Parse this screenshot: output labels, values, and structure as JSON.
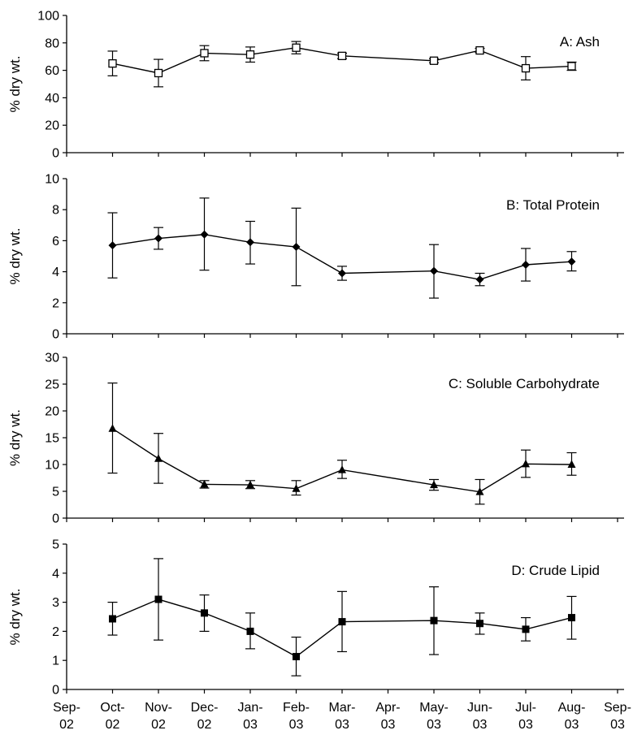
{
  "chart_data": {
    "type": "line",
    "x_ticks": [
      "Sep-02",
      "Oct-02",
      "Nov-02",
      "Dec-02",
      "Jan-03",
      "Feb-03",
      "Mar-03",
      "Apr-03",
      "May-03",
      "Jun-03",
      "Jul-03",
      "Aug-03",
      "Sep-03"
    ],
    "panels": [
      {
        "label": "A: Ash",
        "ylabel": "% dry wt.",
        "ylim": [
          0,
          100
        ],
        "yticks": [
          0,
          20,
          40,
          60,
          80,
          100
        ],
        "marker": "open-square",
        "points": [
          {
            "x": "Oct-02",
            "y": 65,
            "lo": 56,
            "hi": 74
          },
          {
            "x": "Nov-02",
            "y": 58,
            "lo": 48,
            "hi": 68
          },
          {
            "x": "Dec-02",
            "y": 72.5,
            "lo": 67,
            "hi": 78
          },
          {
            "x": "Jan-03",
            "y": 71.5,
            "lo": 66,
            "hi": 77
          },
          {
            "x": "Feb-03",
            "y": 76.5,
            "lo": 72,
            "hi": 81
          },
          {
            "x": "Mar-03",
            "y": 70.5,
            "lo": 68.5,
            "hi": 72.5
          },
          {
            "x": "May-03",
            "y": 67,
            "lo": 65.5,
            "hi": 68.5
          },
          {
            "x": "Jun-03",
            "y": 74.5,
            "lo": 73,
            "hi": 76
          },
          {
            "x": "Jul-03",
            "y": 61.5,
            "lo": 53,
            "hi": 70
          },
          {
            "x": "Aug-03",
            "y": 63,
            "lo": 60,
            "hi": 66
          }
        ]
      },
      {
        "label": "B: Total Protein",
        "ylabel": "% dry wt.",
        "ylim": [
          0,
          10
        ],
        "yticks": [
          0,
          2,
          4,
          6,
          8,
          10
        ],
        "marker": "diamond",
        "points": [
          {
            "x": "Oct-02",
            "y": 5.7,
            "lo": 3.6,
            "hi": 7.8
          },
          {
            "x": "Nov-02",
            "y": 6.15,
            "lo": 5.45,
            "hi": 6.85
          },
          {
            "x": "Dec-02",
            "y": 6.4,
            "lo": 4.1,
            "hi": 8.75
          },
          {
            "x": "Jan-03",
            "y": 5.9,
            "lo": 4.5,
            "hi": 7.25
          },
          {
            "x": "Feb-03",
            "y": 5.6,
            "lo": 3.1,
            "hi": 8.1
          },
          {
            "x": "Mar-03",
            "y": 3.9,
            "lo": 3.45,
            "hi": 4.35
          },
          {
            "x": "May-03",
            "y": 4.05,
            "lo": 2.3,
            "hi": 5.75
          },
          {
            "x": "Jun-03",
            "y": 3.5,
            "lo": 3.1,
            "hi": 3.9
          },
          {
            "x": "Jul-03",
            "y": 4.45,
            "lo": 3.4,
            "hi": 5.5
          },
          {
            "x": "Aug-03",
            "y": 4.65,
            "lo": 4.05,
            "hi": 5.3
          }
        ]
      },
      {
        "label": "C: Soluble Carbohydrate",
        "ylabel": "% dry wt.",
        "ylim": [
          0,
          30
        ],
        "yticks": [
          0,
          5,
          10,
          15,
          20,
          25,
          30
        ],
        "marker": "triangle",
        "points": [
          {
            "x": "Oct-02",
            "y": 16.7,
            "lo": 8.4,
            "hi": 25.2
          },
          {
            "x": "Nov-02",
            "y": 11.1,
            "lo": 6.5,
            "hi": 15.8
          },
          {
            "x": "Dec-02",
            "y": 6.3,
            "lo": 5.6,
            "hi": 7.0
          },
          {
            "x": "Jan-03",
            "y": 6.2,
            "lo": 5.5,
            "hi": 7.0
          },
          {
            "x": "Feb-03",
            "y": 5.5,
            "lo": 4.3,
            "hi": 7.0
          },
          {
            "x": "Mar-03",
            "y": 9.0,
            "lo": 7.4,
            "hi": 10.8
          },
          {
            "x": "May-03",
            "y": 6.2,
            "lo": 5.2,
            "hi": 7.2
          },
          {
            "x": "Jun-03",
            "y": 4.9,
            "lo": 2.6,
            "hi": 7.2
          },
          {
            "x": "Jul-03",
            "y": 10.1,
            "lo": 7.6,
            "hi": 12.7
          },
          {
            "x": "Aug-03",
            "y": 10.0,
            "lo": 8.0,
            "hi": 12.2
          }
        ]
      },
      {
        "label": "D: Crude Lipid",
        "ylabel": "% dry wt.",
        "ylim": [
          0,
          5
        ],
        "yticks": [
          0,
          1,
          2,
          3,
          4,
          5
        ],
        "marker": "filled-square",
        "points": [
          {
            "x": "Oct-02",
            "y": 2.43,
            "lo": 1.87,
            "hi": 3.0
          },
          {
            "x": "Nov-02",
            "y": 3.1,
            "lo": 1.7,
            "hi": 4.5
          },
          {
            "x": "Dec-02",
            "y": 2.63,
            "lo": 2.0,
            "hi": 3.25
          },
          {
            "x": "Jan-03",
            "y": 2.0,
            "lo": 1.4,
            "hi": 2.63
          },
          {
            "x": "Feb-03",
            "y": 1.13,
            "lo": 0.47,
            "hi": 1.8
          },
          {
            "x": "Mar-03",
            "y": 2.33,
            "lo": 1.3,
            "hi": 3.37
          },
          {
            "x": "May-03",
            "y": 2.37,
            "lo": 1.2,
            "hi": 3.53
          },
          {
            "x": "Jun-03",
            "y": 2.27,
            "lo": 1.9,
            "hi": 2.63
          },
          {
            "x": "Jul-03",
            "y": 2.07,
            "lo": 1.67,
            "hi": 2.47
          },
          {
            "x": "Aug-03",
            "y": 2.47,
            "lo": 1.73,
            "hi": 3.2
          }
        ]
      }
    ]
  }
}
